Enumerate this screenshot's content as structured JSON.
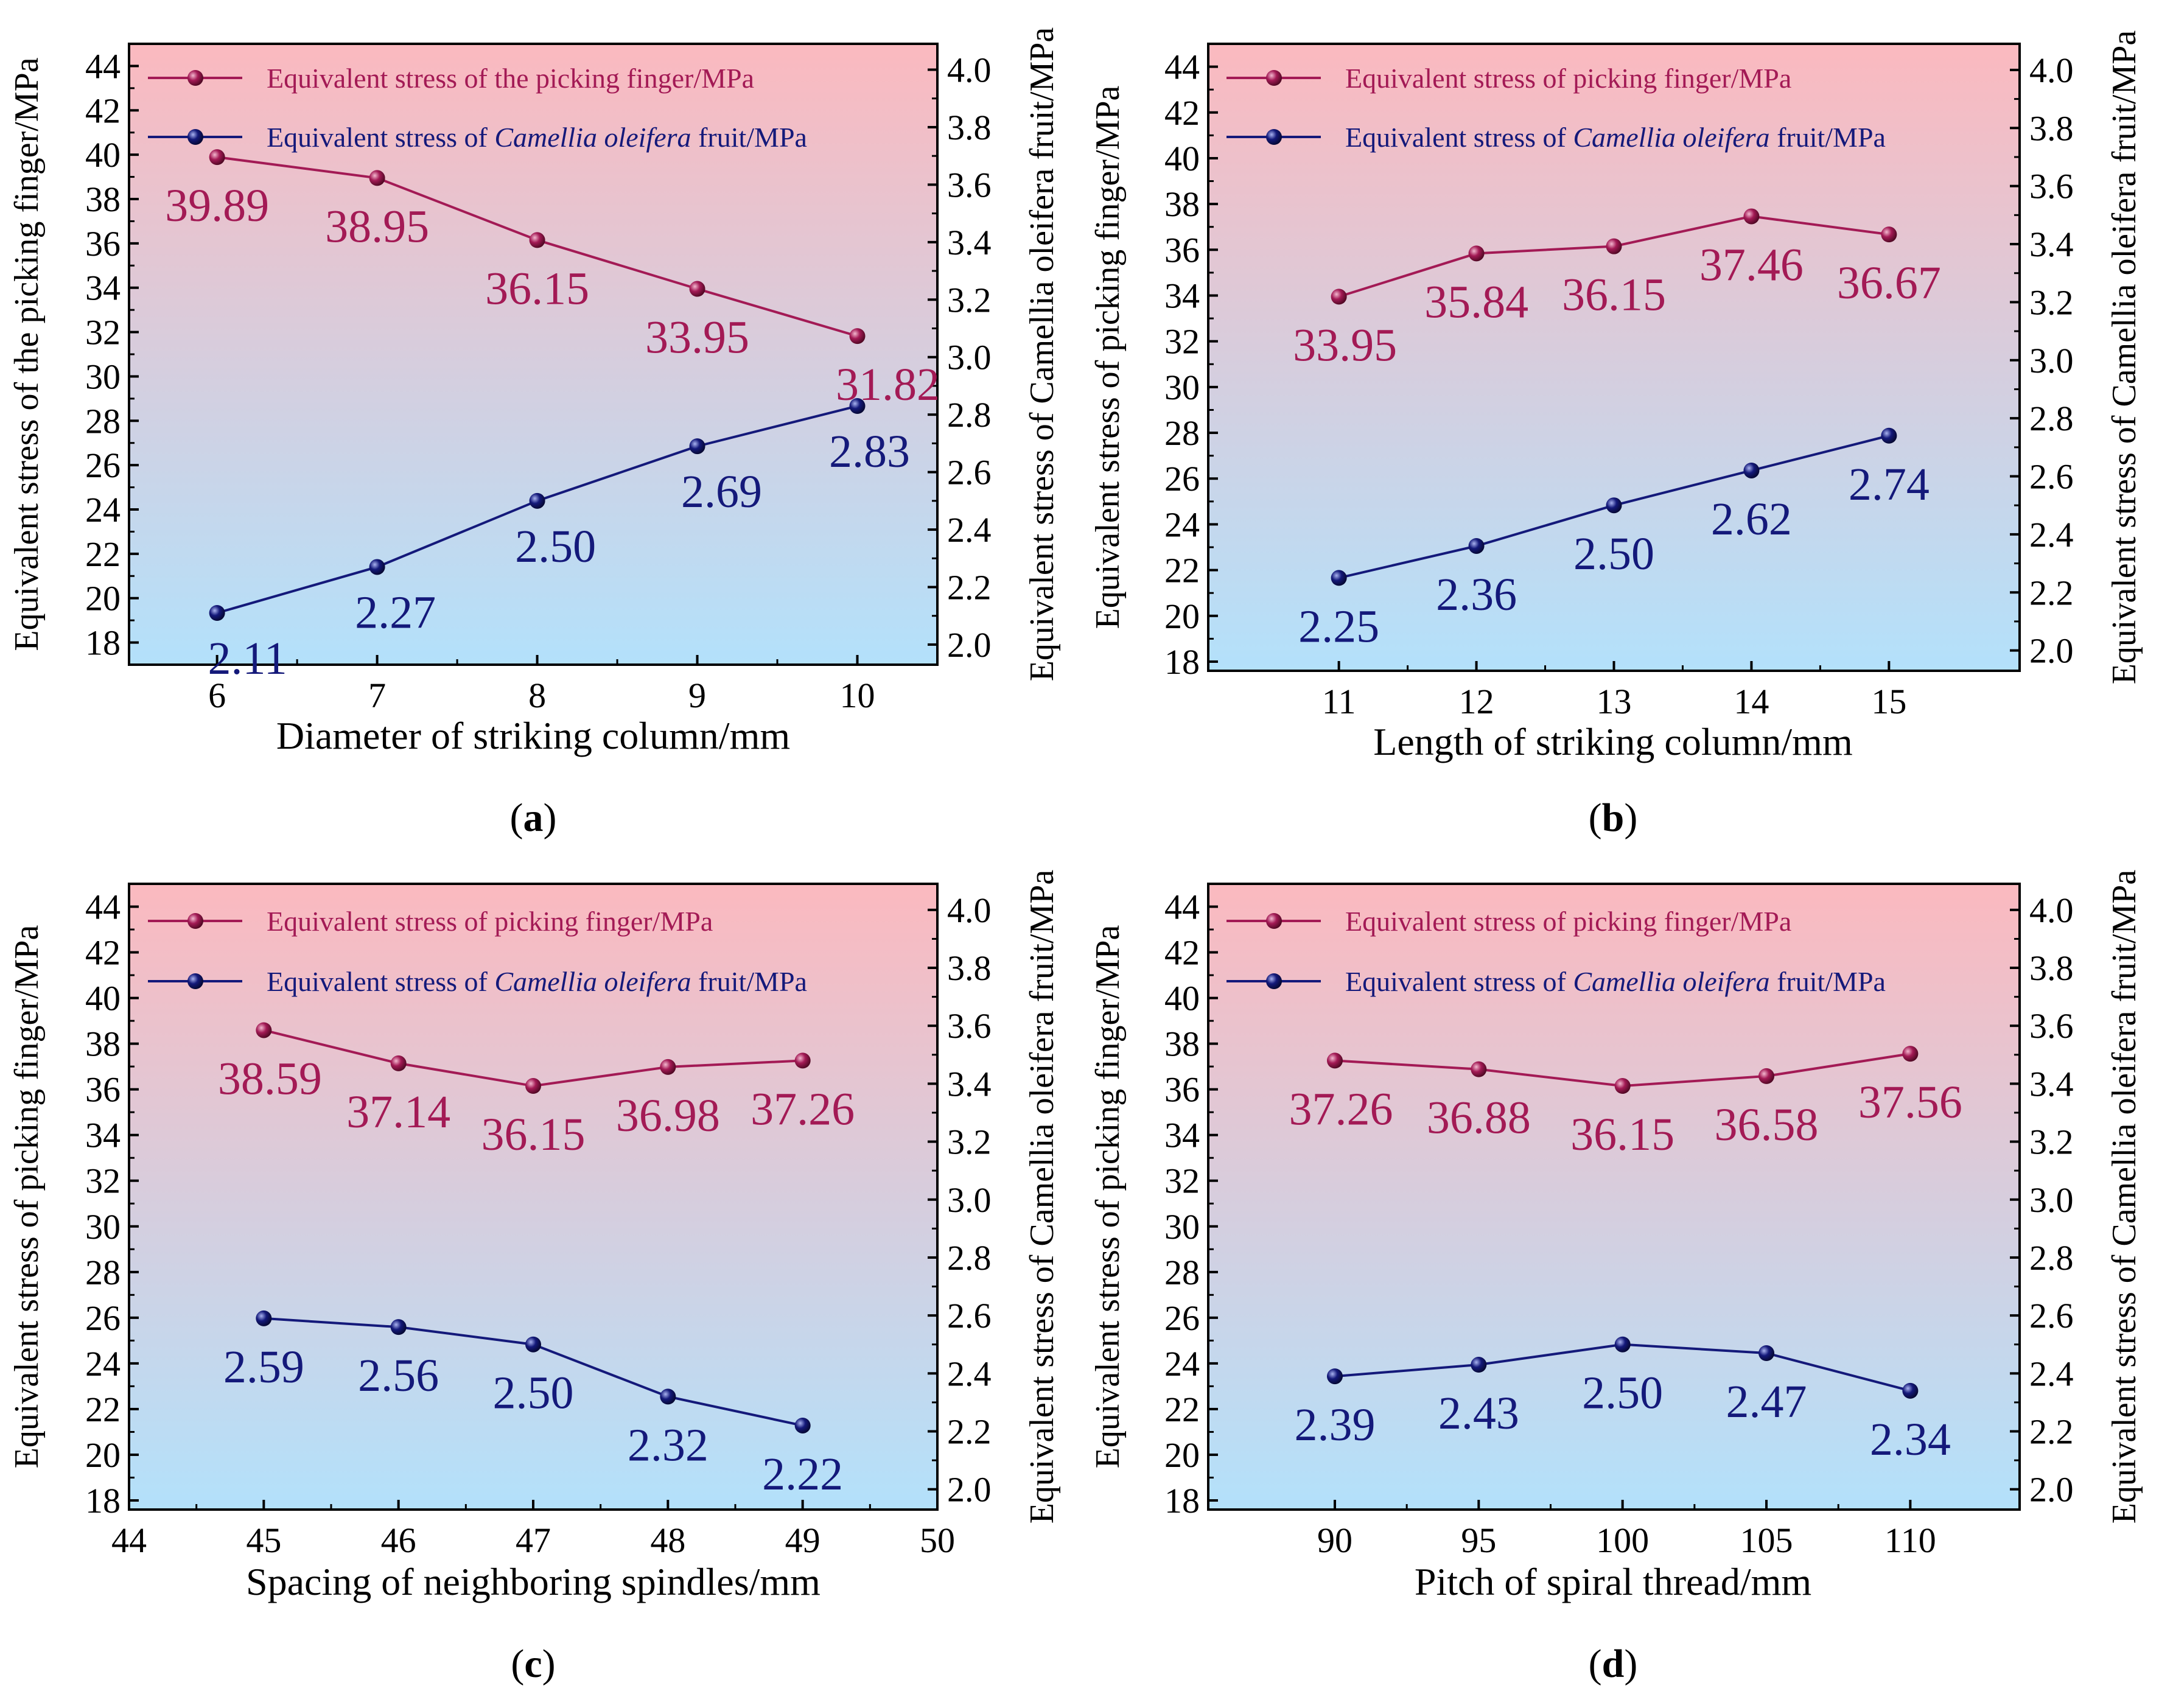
{
  "figure": {
    "panels": [
      {
        "caption_letter": "a"
      },
      {
        "caption_letter": "b"
      },
      {
        "caption_letter": "c"
      },
      {
        "caption_letter": "d"
      }
    ]
  },
  "colors": {
    "finger_series": "#a31a55",
    "fruit_series": "#14197a",
    "background_top": "#fbb9bf",
    "background_bottom": "#b3e1fb",
    "axis": "#000000"
  },
  "chart_data": [
    {
      "type": "line",
      "caption": "(a)",
      "xlabel": "Diameter of striking column/mm",
      "ylabel_left": "Equivalent stress of the picking finger/MPa",
      "ylabel_right": "Equivalent stress of Camellia oleifera fruit/MPa",
      "x": [
        6,
        7,
        8,
        9,
        10
      ],
      "x_ticks": [
        6,
        7,
        8,
        9,
        10
      ],
      "x_tick_labels": [
        "6",
        "7",
        "8",
        "9",
        "10"
      ],
      "xlim": [
        5.45,
        10.5
      ],
      "ylim_left": [
        17,
        45
      ],
      "y_left_ticks": [
        18,
        20,
        22,
        24,
        26,
        28,
        30,
        32,
        34,
        36,
        38,
        40,
        42,
        44
      ],
      "ylim_right": [
        1.93,
        4.09
      ],
      "y_right_ticks": [
        "2.0",
        "2.2",
        "2.4",
        "2.6",
        "2.8",
        "3.0",
        "3.2",
        "3.4",
        "3.6",
        "3.8",
        "4.0"
      ],
      "series": [
        {
          "name": "Equivalent stress of the picking finger/MPa",
          "axis": "left",
          "values": [
            39.89,
            38.95,
            36.15,
            33.95,
            31.82
          ],
          "labels": [
            "39.89",
            "38.95",
            "36.15",
            "33.95",
            "31.82"
          ]
        },
        {
          "name": "Equivalent stress of Camellia oleifera fruit/MPa",
          "axis": "right",
          "values": [
            2.11,
            2.27,
            2.5,
            2.69,
            2.83
          ],
          "labels": [
            "2.11",
            "2.27",
            "2.50",
            "2.69",
            "2.83"
          ]
        }
      ],
      "legend": {
        "finger": "Equivalent stress of the picking finger/MPa",
        "fruit_prefix": "Equivalent stress of ",
        "fruit_italic": "Camellia oleifera",
        "fruit_suffix": " fruit/MPa",
        "placement": "top-left"
      }
    },
    {
      "type": "line",
      "caption": "(b)",
      "xlabel": "Length of striking column/mm",
      "ylabel_left": "Equivalent stress of picking finger/MPa",
      "ylabel_right": "Equivalent stress of Camellia oleifera fruit/MPa",
      "x": [
        11,
        12,
        13,
        14,
        15
      ],
      "x_ticks": [
        11,
        12,
        13,
        14,
        15
      ],
      "x_tick_labels": [
        "11",
        "12",
        "13",
        "14",
        "15"
      ],
      "xlim": [
        10.05,
        15.95
      ],
      "ylim_left": [
        17.6,
        45
      ],
      "y_left_ticks": [
        18,
        20,
        22,
        24,
        26,
        28,
        30,
        32,
        34,
        36,
        38,
        40,
        42,
        44
      ],
      "ylim_right": [
        1.93,
        4.09
      ],
      "y_right_ticks": [
        "2.0",
        "2.2",
        "2.4",
        "2.6",
        "2.8",
        "3.0",
        "3.2",
        "3.4",
        "3.6",
        "3.8",
        "4.0"
      ],
      "series": [
        {
          "name": "Equivalent stress of picking finger/MPa",
          "axis": "left",
          "values": [
            33.95,
            35.84,
            36.15,
            37.46,
            36.67
          ],
          "labels": [
            "33.95",
            "35.84",
            "36.15",
            "37.46",
            "36.67"
          ]
        },
        {
          "name": "Equivalent stress of Camellia oleifera fruit/MPa",
          "axis": "right",
          "values": [
            2.25,
            2.36,
            2.5,
            2.62,
            2.74
          ],
          "labels": [
            "2.25",
            "2.36",
            "2.50",
            "2.62",
            "2.74"
          ]
        }
      ],
      "legend": {
        "finger": "Equivalent stress of picking finger/MPa",
        "fruit_prefix": "Equivalent stress of ",
        "fruit_italic": "Camellia oleifera",
        "fruit_suffix": " fruit/MPa",
        "placement": "top-left"
      }
    },
    {
      "type": "line",
      "caption": "(c)",
      "xlabel": "Spacing of neighboring spindles/mm",
      "ylabel_left": "Equivalent stress of picking finger/MPa",
      "ylabel_right": "Equivalent stress of Camellia oleifera fruit/MPa",
      "x": [
        45,
        46,
        47,
        48,
        49
      ],
      "x_ticks": [
        44,
        45,
        46,
        47,
        48,
        49,
        50
      ],
      "x_tick_labels": [
        "44",
        "45",
        "46",
        "47",
        "48",
        "49",
        "50"
      ],
      "xlim": [
        44,
        50
      ],
      "ylim_left": [
        17.6,
        45
      ],
      "y_left_ticks": [
        18,
        20,
        22,
        24,
        26,
        28,
        30,
        32,
        34,
        36,
        38,
        40,
        42,
        44
      ],
      "ylim_right": [
        1.93,
        4.09
      ],
      "y_right_ticks": [
        "2.0",
        "2.2",
        "2.4",
        "2.6",
        "2.8",
        "3.0",
        "3.2",
        "3.4",
        "3.6",
        "3.8",
        "4.0"
      ],
      "series": [
        {
          "name": "Equivalent stress of picking finger/MPa",
          "axis": "left",
          "values": [
            38.59,
            37.14,
            36.15,
            36.98,
            37.26
          ],
          "labels": [
            "38.59",
            "37.14",
            "36.15",
            "36.98",
            "37.26"
          ]
        },
        {
          "name": "Equivalent stress of Camellia oleifera fruit/MPa",
          "axis": "right",
          "values": [
            2.59,
            2.56,
            2.5,
            2.32,
            2.22
          ],
          "labels": [
            "2.59",
            "2.56",
            "2.50",
            "2.32",
            "2.22"
          ]
        }
      ],
      "legend": {
        "finger": "Equivalent stress of picking finger/MPa",
        "fruit_prefix": "Equivalent stress of ",
        "fruit_italic": "Camellia oleifera",
        "fruit_suffix": " fruit/MPa",
        "placement": "top-left"
      }
    },
    {
      "type": "line",
      "caption": "(d)",
      "xlabel": "Pitch of spiral thread/mm",
      "ylabel_left": "Equivalent stress of picking finger/MPa",
      "ylabel_right": "Equivalent stress of Camellia oleifera fruit/MPa",
      "x": [
        90,
        95,
        100,
        105,
        110
      ],
      "x_ticks": [
        90,
        95,
        100,
        105,
        110
      ],
      "x_tick_labels": [
        "90",
        "95",
        "100",
        "105",
        "110"
      ],
      "xlim": [
        85.6,
        113.8
      ],
      "ylim_left": [
        17.6,
        45
      ],
      "y_left_ticks": [
        18,
        20,
        22,
        24,
        26,
        28,
        30,
        32,
        34,
        36,
        38,
        40,
        42,
        44
      ],
      "ylim_right": [
        1.93,
        4.09
      ],
      "y_right_ticks": [
        "2.0",
        "2.2",
        "2.4",
        "2.6",
        "2.8",
        "3.0",
        "3.2",
        "3.4",
        "3.6",
        "3.8",
        "4.0"
      ],
      "series": [
        {
          "name": "Equivalent stress of picking finger/MPa",
          "axis": "left",
          "values": [
            37.26,
            36.88,
            36.15,
            36.58,
            37.56
          ],
          "labels": [
            "37.26",
            "36.88",
            "36.15",
            "36.58",
            "37.56"
          ]
        },
        {
          "name": "Equivalent stress of Camellia oleifera fruit/MPa",
          "axis": "right",
          "values": [
            2.39,
            2.43,
            2.5,
            2.47,
            2.34
          ],
          "labels": [
            "2.39",
            "2.43",
            "2.50",
            "2.47",
            "2.34"
          ]
        }
      ],
      "legend": {
        "finger": "Equivalent stress of picking finger/MPa",
        "fruit_prefix": "Equivalent stress of ",
        "fruit_italic": "Camellia oleifera",
        "fruit_suffix": " fruit/MPa",
        "placement": "top-left"
      }
    }
  ]
}
